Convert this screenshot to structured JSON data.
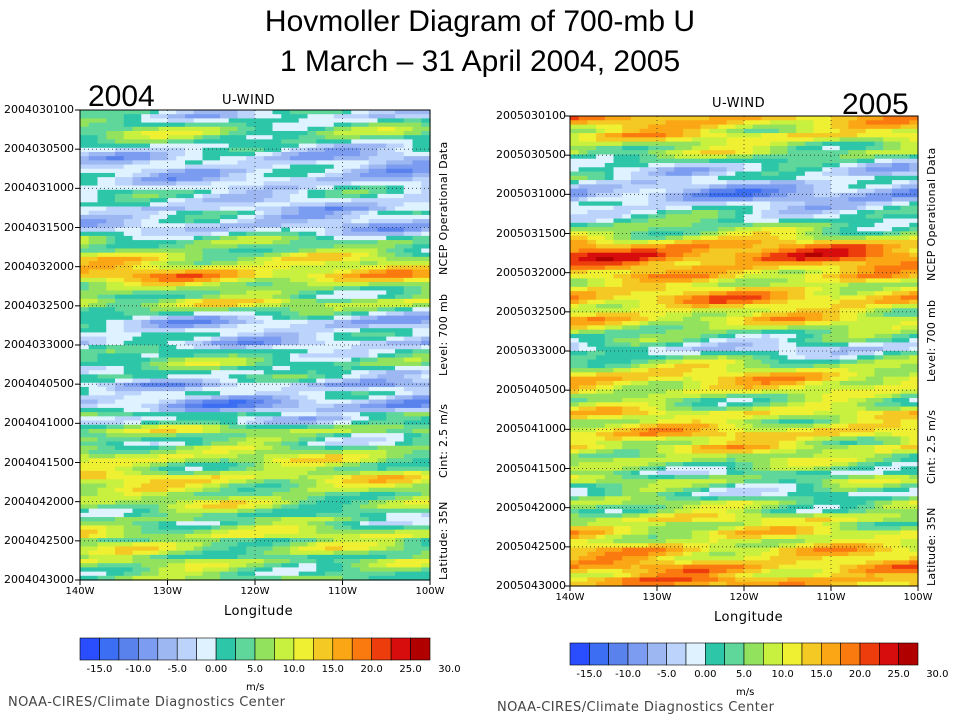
{
  "title_line1": "Hovmoller Diagram of 700-mb U",
  "title_line2": "1 March – 31 April 2004, 2005",
  "chart_data": [
    {
      "type": "heatmap",
      "year_label": "2004",
      "subtitle": "U-WIND",
      "xlabel": "Longitude",
      "x_ticks": [
        "140W",
        "130W",
        "120W",
        "110W",
        "100W"
      ],
      "y_ticks": [
        "2004030100",
        "2004030500",
        "2004031000",
        "2004031500",
        "2004032000",
        "2004032500",
        "2004033000",
        "2004040500",
        "2004041000",
        "2004041500",
        "2004042000",
        "2004042500",
        "2004043000"
      ],
      "side_labels": [
        "Latitude: 35N",
        "Cint: 2.5 m/s",
        "Level: 700 mb",
        "NCEP Operational Data"
      ],
      "x_range": [
        -140,
        -100
      ],
      "units": "m/s",
      "time_profile_ms": [
        0,
        -2,
        1,
        3,
        6,
        7,
        5,
        3,
        0,
        -1,
        -3,
        -4,
        -2,
        -2,
        -3,
        -3,
        -4,
        -2,
        -1,
        1,
        0,
        -2,
        -2,
        -4,
        -1,
        -2,
        -2,
        -4,
        -3,
        0,
        4,
        6,
        5,
        6,
        9,
        11,
        10,
        12,
        14,
        16,
        13,
        9,
        7,
        5,
        5,
        10,
        10,
        6,
        2,
        -2,
        -5,
        -3,
        -1,
        0,
        -2,
        -4,
        -1,
        2,
        2,
        5,
        6,
        3,
        1,
        2,
        -1,
        -5,
        -2,
        0,
        -3,
        -6,
        -7,
        -4,
        2,
        -1,
        0,
        6,
        9,
        5,
        4,
        3,
        7,
        8,
        10,
        10,
        7,
        6,
        9,
        12,
        11,
        9,
        8,
        6,
        7,
        9,
        8,
        5,
        3,
        6,
        4,
        7,
        9,
        10,
        6,
        8,
        9,
        7,
        4,
        8,
        7,
        5,
        4,
        6
      ],
      "colorbar_ticks": [
        "-15.0",
        "-10.0",
        "-5.0",
        "0.00",
        "5.0",
        "10.0",
        "15.0",
        "20.0",
        "25.0",
        "30.0"
      ],
      "colorbar_unit": "m/s",
      "credit": "NOAA-CIRES/Climate Diagnostics Center"
    },
    {
      "type": "heatmap",
      "year_label": "2005",
      "subtitle": "U-WIND",
      "xlabel": "Longitude",
      "x_ticks": [
        "140W",
        "130W",
        "120W",
        "110W",
        "100W"
      ],
      "y_ticks": [
        "2005030100",
        "2005030500",
        "2005031000",
        "2005031500",
        "2005032000",
        "2005032500",
        "2005033000",
        "2005040500",
        "2005041000",
        "2005041500",
        "2005042000",
        "2005042500",
        "2005043000"
      ],
      "side_labels": [
        "Latitude: 35N",
        "Cint: 2.5 m/s",
        "Level: 700 mb",
        "NCEP Operational Data"
      ],
      "x_range": [
        -140,
        -100
      ],
      "units": "m/s",
      "time_profile_ms": [
        14,
        13,
        11,
        9,
        12,
        10,
        6,
        5,
        7,
        4,
        1,
        -2,
        -4,
        -3,
        -1,
        -4,
        -6,
        -8,
        -9,
        -7,
        -4,
        -3,
        -1,
        0,
        1,
        4,
        5,
        6,
        9,
        13,
        16,
        17,
        19,
        18,
        15,
        14,
        12,
        13,
        10,
        8,
        11,
        13,
        15,
        14,
        11,
        9,
        10,
        12,
        10,
        7,
        4,
        2,
        1,
        -2,
        -4,
        -1,
        2,
        5,
        7,
        9,
        12,
        13,
        11,
        10,
        9,
        6,
        4,
        5,
        8,
        11,
        9,
        7,
        10,
        12,
        13,
        10,
        8,
        11,
        9,
        6,
        7,
        5,
        3,
        0,
        4,
        6,
        3,
        1,
        -1,
        3,
        6,
        5,
        4,
        8,
        10,
        7,
        9,
        11,
        9,
        8,
        10,
        13,
        12,
        11,
        13,
        15,
        14,
        12,
        16,
        15
      ],
      "colorbar_ticks": [
        "-15.0",
        "-10.0",
        "-5.0",
        "0.00",
        "5.0",
        "10.0",
        "15.0",
        "20.0",
        "25.0",
        "30.0"
      ],
      "colorbar_unit": "m/s",
      "credit": "NOAA-CIRES/Climate Diagnostics Center"
    }
  ],
  "palette": [
    "#2a4dfd",
    "#3b6ef2",
    "#5a82ec",
    "#7b9cf0",
    "#9db7f2",
    "#bcd4fb",
    "#dff2ff",
    "#2ec6a8",
    "#5fd79b",
    "#93e25e",
    "#c8f03e",
    "#f0f033",
    "#f5c923",
    "#fba614",
    "#fb7a0f",
    "#ee3d0d",
    "#d70c0c",
    "#b00000"
  ]
}
